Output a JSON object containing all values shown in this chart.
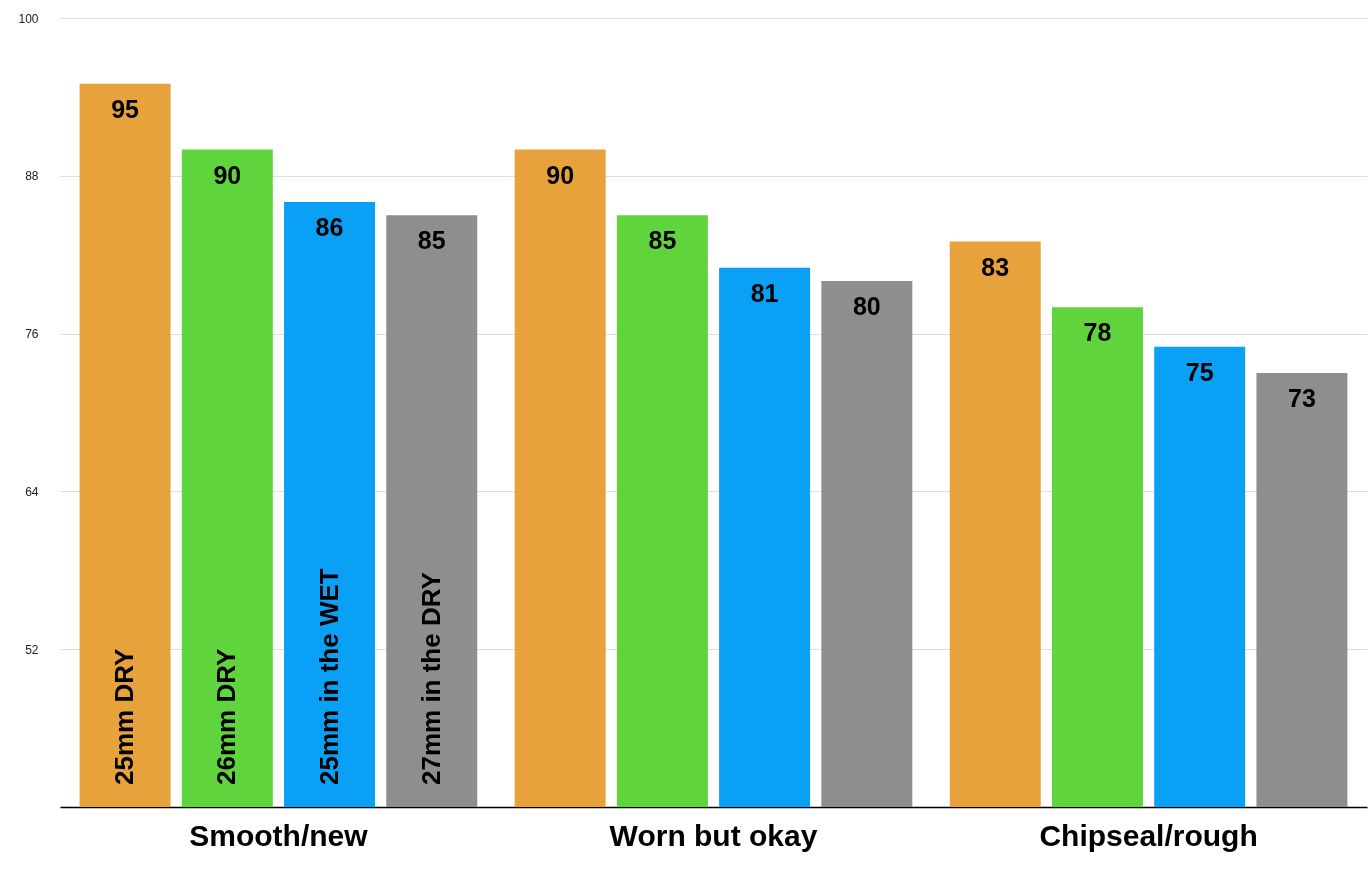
{
  "chart_data": {
    "type": "bar",
    "categories": [
      "Smooth/new",
      "Worn but okay",
      "Chipseal/rough"
    ],
    "series": [
      {
        "name": "25mm DRY",
        "color": "#e8a23c",
        "values": [
          95,
          90,
          83
        ]
      },
      {
        "name": "26mm DRY",
        "color": "#5fd43c",
        "values": [
          90,
          85,
          78
        ]
      },
      {
        "name": "25mm in the WET",
        "color": "#0aa0f5",
        "values": [
          86,
          81,
          75
        ]
      },
      {
        "name": "27mm in the DRY",
        "color": "#8e8e8e",
        "values": [
          85,
          80,
          73
        ]
      }
    ],
    "ylim": [
      40,
      100
    ],
    "yticks": [
      52,
      64,
      76,
      88,
      100
    ],
    "grid": "y",
    "data_labels": true
  }
}
